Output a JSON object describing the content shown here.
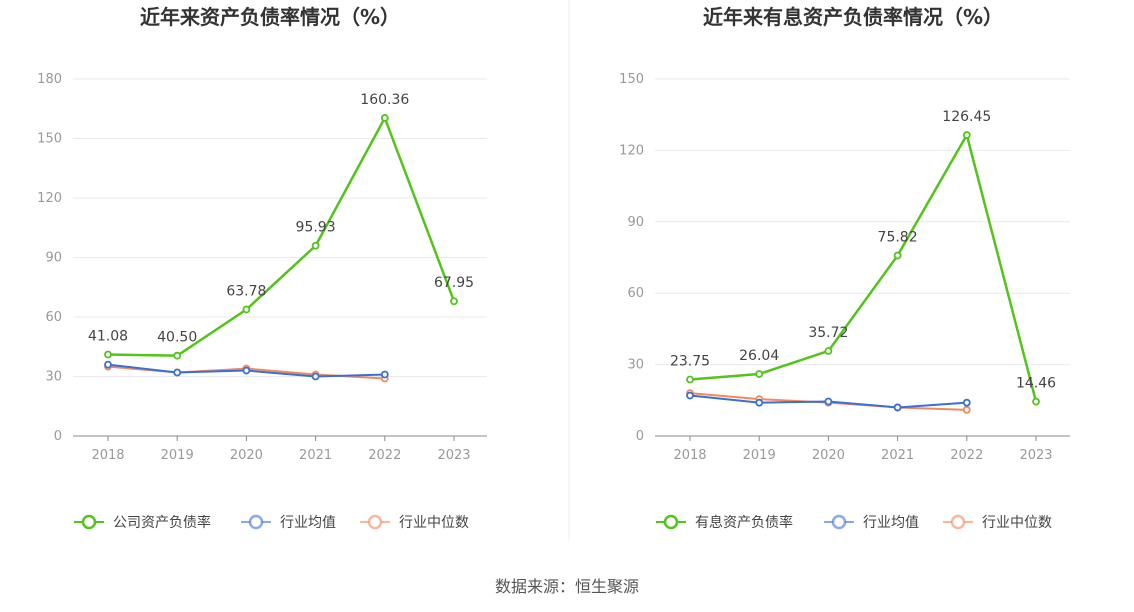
{
  "source_label": "数据来源：恒生聚源",
  "chart_data": [
    {
      "type": "line",
      "title": "近年来资产负债率情况（%）",
      "x": [
        "2018",
        "2019",
        "2020",
        "2021",
        "2022",
        "2023"
      ],
      "ylim": [
        0,
        180
      ],
      "yticks": [
        0,
        30,
        60,
        90,
        120,
        150,
        180
      ],
      "grid": true,
      "legend_position": "bottom",
      "series": [
        {
          "name": "公司资产负债率",
          "color": "#52c41a",
          "labeled": true,
          "values": [
            41.08,
            40.5,
            63.78,
            95.93,
            160.36,
            67.95
          ],
          "labels": [
            "41.08",
            "40.50",
            "63.78",
            "95.93",
            "160.36",
            "67.95"
          ]
        },
        {
          "name": "行业均值",
          "color": "#3a6fd8",
          "labeled": false,
          "values": [
            36,
            32,
            33,
            30,
            31,
            null
          ]
        },
        {
          "name": "行业中位数",
          "color": "#f08a5d",
          "labeled": false,
          "values": [
            35,
            32,
            34,
            31,
            29,
            null
          ]
        }
      ]
    },
    {
      "type": "line",
      "title": "近年来有息资产负债率情况（%）",
      "x": [
        "2018",
        "2019",
        "2020",
        "2021",
        "2022",
        "2023"
      ],
      "ylim": [
        0,
        150
      ],
      "yticks": [
        0,
        30,
        60,
        90,
        120,
        150
      ],
      "grid": true,
      "legend_position": "bottom",
      "series": [
        {
          "name": "有息资产负债率",
          "color": "#52c41a",
          "labeled": true,
          "values": [
            23.75,
            26.04,
            35.72,
            75.82,
            126.45,
            14.46
          ],
          "labels": [
            "23.75",
            "26.04",
            "35.72",
            "75.82",
            "126.45",
            "14.46"
          ]
        },
        {
          "name": "行业均值",
          "color": "#3a6fd8",
          "labeled": false,
          "values": [
            17,
            14,
            14.5,
            12,
            14,
            null
          ]
        },
        {
          "name": "行业中位数",
          "color": "#f08a5d",
          "labeled": false,
          "values": [
            18,
            15.5,
            14,
            12,
            11,
            null
          ]
        }
      ]
    }
  ]
}
